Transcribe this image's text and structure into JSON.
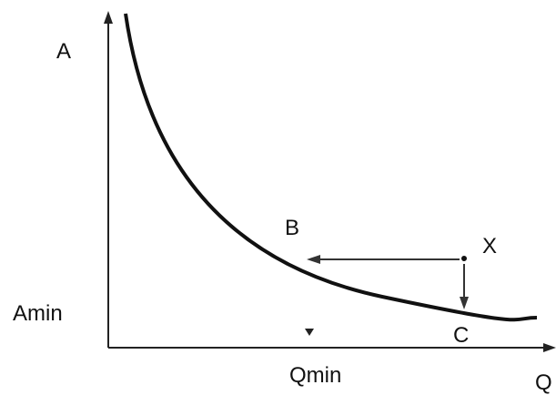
{
  "axes": {
    "y_label": "A",
    "x_label": "Q"
  },
  "levels": {
    "a_min": "Amin",
    "q_min": "Qmin"
  },
  "points": {
    "b": "B",
    "x": "X",
    "c": "C"
  }
}
